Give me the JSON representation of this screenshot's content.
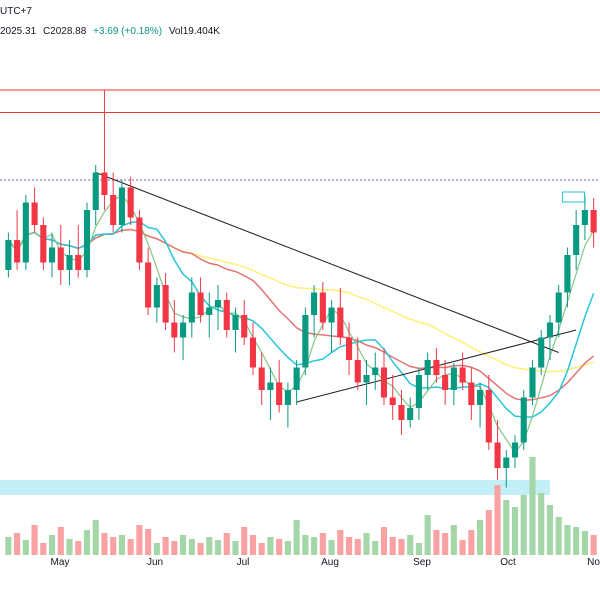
{
  "header": {
    "timezone": "UTC+7",
    "low": "2025.31",
    "close": "C2028.88",
    "change": "+3.69 (+0.18%)",
    "volume": "Vol19.404K"
  },
  "colors": {
    "up": "#089981",
    "down": "#f23645",
    "vol_up": "#a5d6a7",
    "vol_down": "#faa1a4",
    "ma_green": "#81c784",
    "ma_cyan": "#26c6da",
    "ma_red": "#e57373",
    "ma_yellow": "#fff176",
    "hline": "#e53935",
    "dotted": "#7e57c2",
    "trend": "#222222",
    "zone": "#b2ebf2"
  },
  "chart_data": {
    "type": "candlestick",
    "x_labels": [
      "May",
      "Jun",
      "Jul",
      "Aug",
      "Sep",
      "Oct",
      "Nov"
    ],
    "levels": {
      "resistance_1": 2080,
      "resistance_2": 2065,
      "dotted_level": 2020,
      "support_zone": [
        1820,
        1810
      ]
    },
    "ylim": [
      1770,
      2110
    ],
    "candles": [
      [
        1960,
        1985,
        1955,
        1980
      ],
      [
        1980,
        2000,
        1960,
        1965
      ],
      [
        1965,
        2010,
        1960,
        2005
      ],
      [
        2005,
        2015,
        1985,
        1990
      ],
      [
        1990,
        1995,
        1960,
        1965
      ],
      [
        1965,
        1985,
        1955,
        1975
      ],
      [
        1975,
        1990,
        1950,
        1960
      ],
      [
        1960,
        1980,
        1950,
        1970
      ],
      [
        1970,
        1990,
        1955,
        1960
      ],
      [
        1960,
        2005,
        1955,
        2000
      ],
      [
        2000,
        2030,
        1990,
        2025
      ],
      [
        2025,
        2080,
        2000,
        2010
      ],
      [
        2010,
        2025,
        1985,
        1990
      ],
      [
        1990,
        2020,
        1985,
        2015
      ],
      [
        2015,
        2022,
        1990,
        1995
      ],
      [
        1995,
        2000,
        1960,
        1965
      ],
      [
        1965,
        1975,
        1930,
        1935
      ],
      [
        1935,
        1955,
        1925,
        1950
      ],
      [
        1950,
        1958,
        1920,
        1925
      ],
      [
        1925,
        1940,
        1905,
        1915
      ],
      [
        1915,
        1930,
        1900,
        1925
      ],
      [
        1925,
        1955,
        1915,
        1945
      ],
      [
        1945,
        1955,
        1925,
        1930
      ],
      [
        1930,
        1945,
        1915,
        1935
      ],
      [
        1935,
        1950,
        1920,
        1940
      ],
      [
        1940,
        1945,
        1915,
        1920
      ],
      [
        1920,
        1935,
        1905,
        1930
      ],
      [
        1930,
        1940,
        1910,
        1915
      ],
      [
        1915,
        1925,
        1890,
        1895
      ],
      [
        1895,
        1905,
        1870,
        1880
      ],
      [
        1880,
        1895,
        1860,
        1885
      ],
      [
        1885,
        1900,
        1865,
        1870
      ],
      [
        1870,
        1885,
        1855,
        1880
      ],
      [
        1880,
        1900,
        1870,
        1895
      ],
      [
        1895,
        1935,
        1890,
        1930
      ],
      [
        1930,
        1950,
        1915,
        1945
      ],
      [
        1945,
        1952,
        1920,
        1925
      ],
      [
        1925,
        1940,
        1905,
        1935
      ],
      [
        1935,
        1948,
        1910,
        1915
      ],
      [
        1915,
        1925,
        1890,
        1900
      ],
      [
        1900,
        1915,
        1880,
        1885
      ],
      [
        1885,
        1900,
        1870,
        1890
      ],
      [
        1890,
        1905,
        1880,
        1895
      ],
      [
        1895,
        1908,
        1870,
        1875
      ],
      [
        1875,
        1890,
        1860,
        1870
      ],
      [
        1870,
        1880,
        1850,
        1860
      ],
      [
        1860,
        1875,
        1855,
        1868
      ],
      [
        1868,
        1895,
        1860,
        1890
      ],
      [
        1890,
        1905,
        1880,
        1900
      ],
      [
        1900,
        1908,
        1885,
        1890
      ],
      [
        1890,
        1900,
        1870,
        1880
      ],
      [
        1880,
        1898,
        1870,
        1895
      ],
      [
        1895,
        1905,
        1880,
        1885
      ],
      [
        1885,
        1895,
        1860,
        1870
      ],
      [
        1870,
        1885,
        1855,
        1880
      ],
      [
        1880,
        1890,
        1840,
        1845
      ],
      [
        1845,
        1860,
        1820,
        1828
      ],
      [
        1828,
        1840,
        1815,
        1835
      ],
      [
        1835,
        1850,
        1828,
        1845
      ],
      [
        1845,
        1880,
        1840,
        1875
      ],
      [
        1875,
        1900,
        1870,
        1895
      ],
      [
        1895,
        1920,
        1890,
        1915
      ],
      [
        1915,
        1930,
        1900,
        1925
      ],
      [
        1925,
        1950,
        1915,
        1945
      ],
      [
        1945,
        1975,
        1935,
        1970
      ],
      [
        1970,
        2000,
        1960,
        1990
      ],
      [
        1990,
        2010,
        1980,
        2000
      ],
      [
        2000,
        2008,
        1975,
        1985
      ]
    ],
    "volume": [
      0.18,
      0.22,
      0.15,
      0.3,
      0.12,
      0.2,
      0.28,
      0.16,
      0.14,
      0.25,
      0.35,
      0.22,
      0.18,
      0.2,
      0.16,
      0.3,
      0.26,
      0.12,
      0.18,
      0.14,
      0.2,
      0.16,
      0.12,
      0.18,
      0.15,
      0.22,
      0.14,
      0.28,
      0.2,
      0.12,
      0.18,
      0.16,
      0.14,
      0.35,
      0.2,
      0.18,
      0.22,
      0.15,
      0.25,
      0.18,
      0.16,
      0.22,
      0.14,
      0.28,
      0.18,
      0.16,
      0.2,
      0.12,
      0.4,
      0.25,
      0.22,
      0.3,
      0.15,
      0.25,
      0.35,
      0.45,
      0.7,
      0.55,
      0.48,
      0.6,
      0.98,
      0.62,
      0.5,
      0.38,
      0.3,
      0.28,
      0.24,
      0.2
    ]
  }
}
